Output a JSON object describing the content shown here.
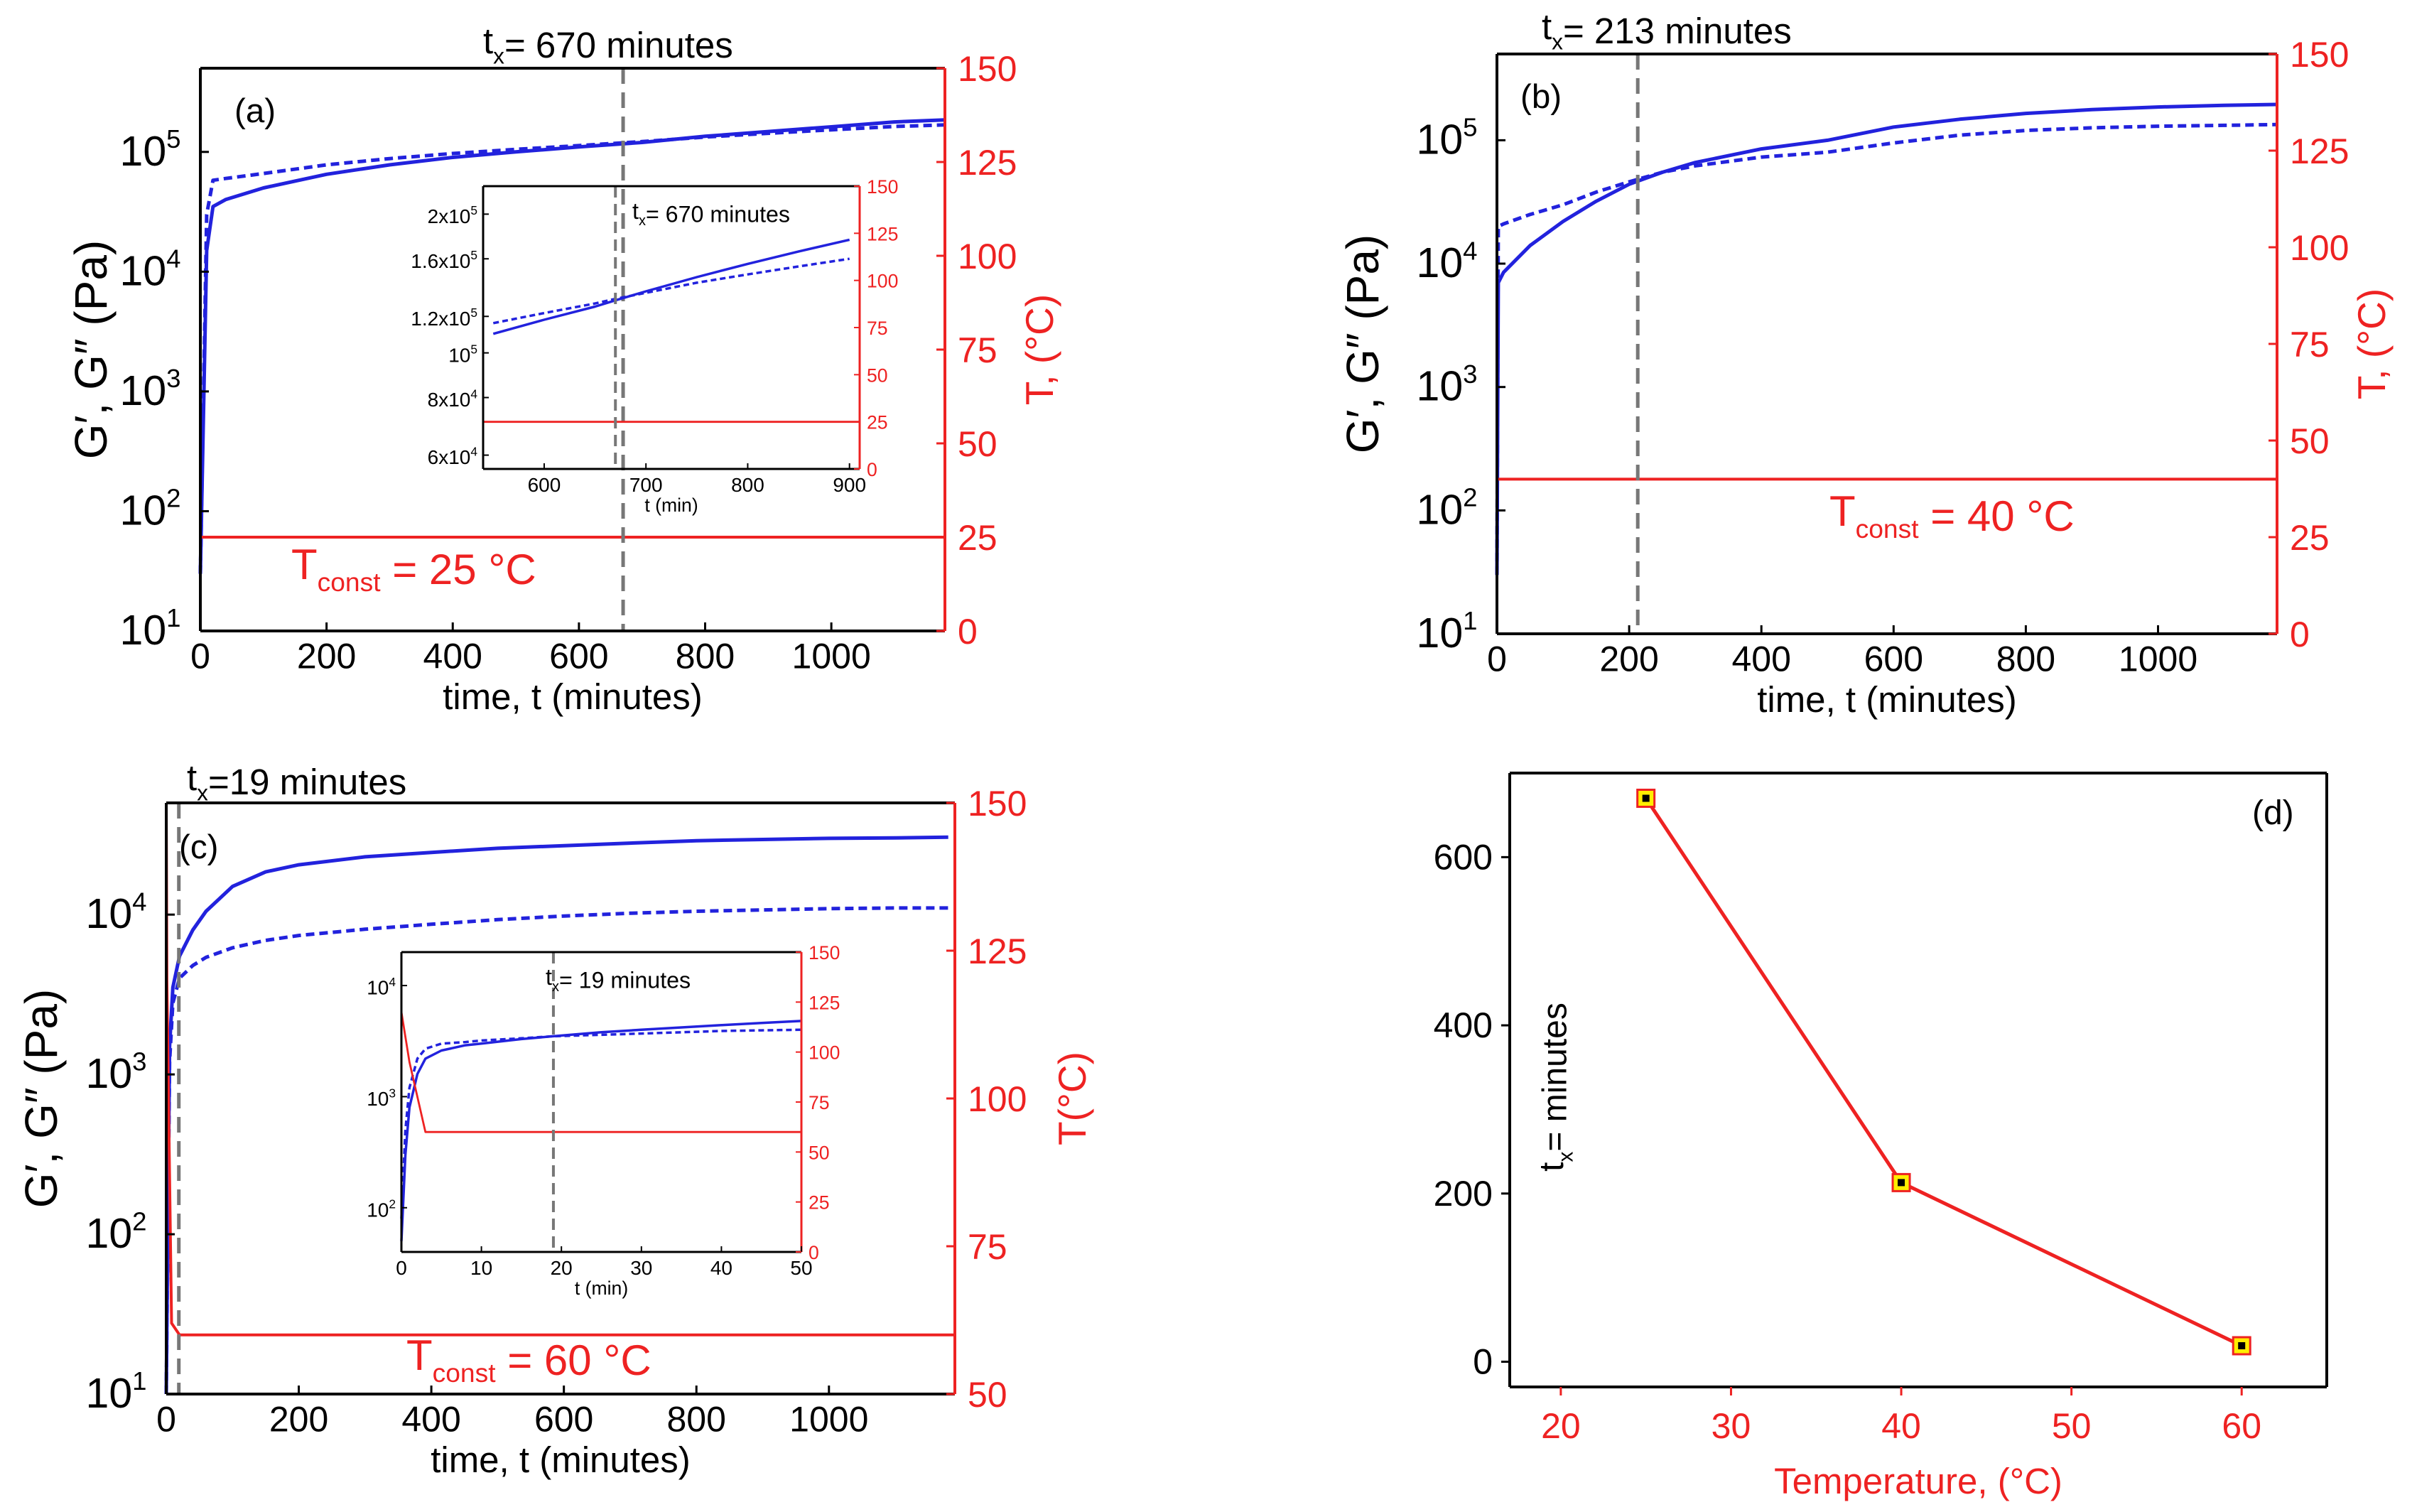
{
  "colors": {
    "primary": "#2222dd",
    "temperature": "#ee2222",
    "marker_fill": "#ffee00",
    "guide": "#777777"
  },
  "panels": [
    {
      "id": "a",
      "label": "(a)",
      "title_prefix": "t",
      "title_sub": "x",
      "title_suffix": "=  670 minutes",
      "xlabel": "time, t (minutes)",
      "ylabel": "G′, G″ (Pa)",
      "y2label": "T, (°C)",
      "xticks": [
        "0",
        "200",
        "400",
        "600",
        "800",
        "1000"
      ],
      "yticks": [
        {
          "b": "10",
          "e": "1"
        },
        {
          "b": "10",
          "e": "2"
        },
        {
          "b": "10",
          "e": "3"
        },
        {
          "b": "10",
          "e": "4"
        },
        {
          "b": "10",
          "e": "5"
        }
      ],
      "y2ticks": [
        "0",
        "25",
        "50",
        "75",
        "100",
        "125",
        "150"
      ],
      "tconst": {
        "pre": "T",
        "sub": "const",
        "post": " = 25 °C"
      },
      "inset": {
        "title_prefix": "t",
        "title_sub": "x",
        "title_suffix": "= 670 minutes",
        "xlabel": "t (min)",
        "xticks": [
          "600",
          "700",
          "800",
          "900"
        ],
        "yticks": [
          {
            "b": "6x10",
            "e": "4"
          },
          {
            "b": "8x10",
            "e": "4"
          },
          {
            "b": "10",
            "e": "5"
          },
          {
            "b": "1.2x10",
            "e": "5"
          },
          {
            "b": "1.6x10",
            "e": "5"
          },
          {
            "b": "2x10",
            "e": "5"
          }
        ],
        "y2ticks": [
          "0",
          "25",
          "50",
          "75",
          "100",
          "125",
          "150"
        ]
      }
    },
    {
      "id": "b",
      "label": "(b)",
      "title_prefix": "t",
      "title_sub": "x",
      "title_suffix": "=  213  minutes",
      "xlabel": "time, t (minutes)",
      "ylabel": "G′, G″ (Pa)",
      "y2label": "T, (°C)",
      "xticks": [
        "0",
        "200",
        "400",
        "600",
        "800",
        "1000"
      ],
      "yticks": [
        {
          "b": "10",
          "e": "1"
        },
        {
          "b": "10",
          "e": "2"
        },
        {
          "b": "10",
          "e": "3"
        },
        {
          "b": "10",
          "e": "4"
        },
        {
          "b": "10",
          "e": "5"
        }
      ],
      "y2ticks": [
        "0",
        "25",
        "50",
        "75",
        "100",
        "125",
        "150"
      ],
      "tconst": {
        "pre": "T",
        "sub": "const",
        "post": " = 40 °C"
      }
    },
    {
      "id": "c",
      "label": "(c)",
      "title_prefix": "t",
      "title_sub": "x",
      "title_suffix": "=19 minutes",
      "xlabel": "time, t (minutes)",
      "ylabel": "G′, G″ (Pa)",
      "y2label": "T(°C)",
      "xticks": [
        "0",
        "200",
        "400",
        "600",
        "800",
        "1000"
      ],
      "yticks": [
        {
          "b": "10",
          "e": "1"
        },
        {
          "b": "10",
          "e": "2"
        },
        {
          "b": "10",
          "e": "3"
        },
        {
          "b": "10",
          "e": "4"
        }
      ],
      "y2ticks": [
        "50",
        "75",
        "100",
        "125",
        "150"
      ],
      "tconst": {
        "pre": "T",
        "sub": "const",
        "post": " = 60 °C"
      },
      "inset": {
        "title_prefix": "t",
        "title_sub": "x",
        "title_suffix": "= 19 minutes",
        "xlabel": "t (min)",
        "xticks": [
          "0",
          "10",
          "20",
          "30",
          "40",
          "50"
        ],
        "yticks": [
          {
            "b": "10",
            "e": "2"
          },
          {
            "b": "10",
            "e": "3"
          },
          {
            "b": "10",
            "e": "4"
          }
        ],
        "y2ticks": [
          "0",
          "25",
          "50",
          "75",
          "100",
          "125",
          "150"
        ]
      }
    },
    {
      "id": "d",
      "label": "(d)",
      "xlabel": "Temperature, (°C)",
      "ylabel_prefix": "t",
      "ylabel_sub": "x",
      "ylabel_suffix": "= minutes",
      "xticks": [
        "20",
        "30",
        "40",
        "50",
        "60"
      ],
      "yticks": [
        "0",
        "200",
        "400",
        "600"
      ]
    }
  ],
  "chart_data": [
    {
      "panel": "a",
      "type": "line",
      "xlim": [
        0,
        1180
      ],
      "ylim": [
        10,
        500000
      ],
      "y_scale": "log",
      "y2lim": [
        0,
        150
      ],
      "tx_minutes": 670,
      "series": [
        {
          "style": "solid",
          "x": [
            0,
            10,
            20,
            40,
            100,
            200,
            300,
            400,
            500,
            600,
            700,
            800,
            900,
            1000,
            1100,
            1180
          ],
          "y": [
            30,
            15000,
            35000,
            40000,
            50000,
            65000,
            78000,
            90000,
            100000,
            110000,
            120000,
            135000,
            148000,
            162000,
            178000,
            185000
          ]
        },
        {
          "style": "dashed",
          "x": [
            0,
            10,
            20,
            40,
            100,
            200,
            300,
            400,
            500,
            600,
            700,
            800,
            900,
            1000,
            1100,
            1180
          ],
          "y": [
            30,
            30000,
            58000,
            60000,
            66000,
            78000,
            88000,
            97000,
            105000,
            113000,
            122000,
            133000,
            143000,
            153000,
            163000,
            168000
          ]
        },
        {
          "style": "temperature",
          "x": [
            0,
            1180
          ],
          "y": [
            25,
            25
          ]
        }
      ],
      "inset": {
        "xlim": [
          540,
          910
        ],
        "ylim": [
          56000,
          230000
        ],
        "y_scale": "log",
        "y2lim": [
          0,
          150
        ],
        "series": [
          {
            "style": "solid",
            "x": [
              550,
              600,
              650,
              670,
              700,
              750,
              800,
              850,
              900
            ],
            "y": [
              110000,
              118000,
              126000,
              130000,
              136000,
              146000,
              156000,
              166000,
              176000
            ]
          },
          {
            "style": "dashed",
            "x": [
              550,
              600,
              650,
              670,
              700,
              750,
              800,
              850,
              900
            ],
            "y": [
              116000,
              122000,
              128000,
              131000,
              135000,
              142000,
              148000,
              154000,
              160000
            ]
          },
          {
            "style": "temperature",
            "x": [
              540,
              910
            ],
            "y": [
              25,
              25
            ]
          }
        ]
      }
    },
    {
      "panel": "b",
      "type": "line",
      "xlim": [
        0,
        1180
      ],
      "ylim": [
        10,
        500000
      ],
      "y_scale": "log",
      "y2lim": [
        0,
        150
      ],
      "tx_minutes": 213,
      "series": [
        {
          "style": "solid",
          "x": [
            0,
            2,
            10,
            50,
            100,
            150,
            200,
            250,
            300,
            400,
            500,
            600,
            700,
            800,
            900,
            1000,
            1100,
            1180
          ],
          "y": [
            30,
            7000,
            8500,
            14000,
            22000,
            32000,
            44000,
            55000,
            66000,
            85000,
            100000,
            128000,
            148000,
            165000,
            177000,
            186000,
            192000,
            195000
          ]
        },
        {
          "style": "dashed",
          "x": [
            0,
            2,
            10,
            50,
            100,
            150,
            200,
            250,
            300,
            400,
            500,
            600,
            700,
            800,
            900,
            1000,
            1100,
            1180
          ],
          "y": [
            30,
            20000,
            21000,
            25000,
            30000,
            38000,
            46000,
            55000,
            62000,
            73000,
            80000,
            95000,
            110000,
            120000,
            126000,
            130000,
            132000,
            134000
          ]
        },
        {
          "style": "temperature",
          "x": [
            0,
            1180
          ],
          "y": [
            40,
            40
          ]
        }
      ]
    },
    {
      "panel": "c",
      "type": "line",
      "xlim": [
        0,
        1190
      ],
      "ylim": [
        10,
        50000
      ],
      "y_scale": "log",
      "y2lim": [
        50,
        150
      ],
      "tx_minutes": 19,
      "series": [
        {
          "style": "solid",
          "x": [
            0,
            5,
            10,
            20,
            40,
            60,
            100,
            150,
            200,
            300,
            400,
            500,
            600,
            700,
            800,
            900,
            1000,
            1100,
            1180
          ],
          "y": [
            10,
            1500,
            3500,
            5500,
            8000,
            10500,
            15000,
            18500,
            20500,
            23000,
            24500,
            26000,
            27000,
            28000,
            29000,
            29500,
            30000,
            30200,
            30500
          ]
        },
        {
          "style": "dashed",
          "x": [
            0,
            5,
            10,
            20,
            40,
            60,
            100,
            150,
            200,
            300,
            400,
            500,
            600,
            700,
            800,
            900,
            1000,
            1100,
            1180
          ],
          "y": [
            10,
            1200,
            2800,
            4000,
            4800,
            5400,
            6200,
            6900,
            7400,
            8100,
            8700,
            9300,
            9800,
            10200,
            10500,
            10700,
            10900,
            11000,
            11000
          ]
        },
        {
          "style": "temperature",
          "x": [
            0,
            1,
            8,
            20,
            1190
          ],
          "y": [
            150,
            120,
            62,
            60,
            60
          ]
        }
      ],
      "inset": {
        "xlim": [
          0,
          50
        ],
        "ylim": [
          40,
          20000
        ],
        "y_scale": "log",
        "y2lim": [
          0,
          150
        ],
        "series": [
          {
            "style": "solid",
            "x": [
              0,
              0.5,
              1,
              2,
              3,
              5,
              8,
              10,
              15,
              19,
              25,
              30,
              35,
              40,
              45,
              50
            ],
            "y": [
              50,
              300,
              800,
              1600,
              2200,
              2600,
              2900,
              3000,
              3300,
              3500,
              3800,
              4000,
              4200,
              4400,
              4600,
              4800
            ]
          },
          {
            "style": "dashed",
            "x": [
              0,
              0.5,
              1,
              2,
              3,
              5,
              8,
              10,
              15,
              19,
              25,
              30,
              35,
              40,
              45,
              50
            ],
            "y": [
              80,
              500,
              1200,
              2200,
              2700,
              3000,
              3100,
              3200,
              3350,
              3500,
              3600,
              3700,
              3800,
              3900,
              3950,
              4000
            ]
          },
          {
            "style": "temperature",
            "x": [
              0,
              1,
              3,
              50
            ],
            "y": [
              120,
              95,
              60,
              60
            ]
          }
        ]
      }
    },
    {
      "panel": "d",
      "type": "line",
      "xlim": [
        17,
        65
      ],
      "ylim": [
        -30,
        700
      ],
      "series": [
        {
          "name": "",
          "x": [
            25,
            40,
            60
          ],
          "y": [
            670,
            213,
            19
          ]
        }
      ]
    }
  ]
}
